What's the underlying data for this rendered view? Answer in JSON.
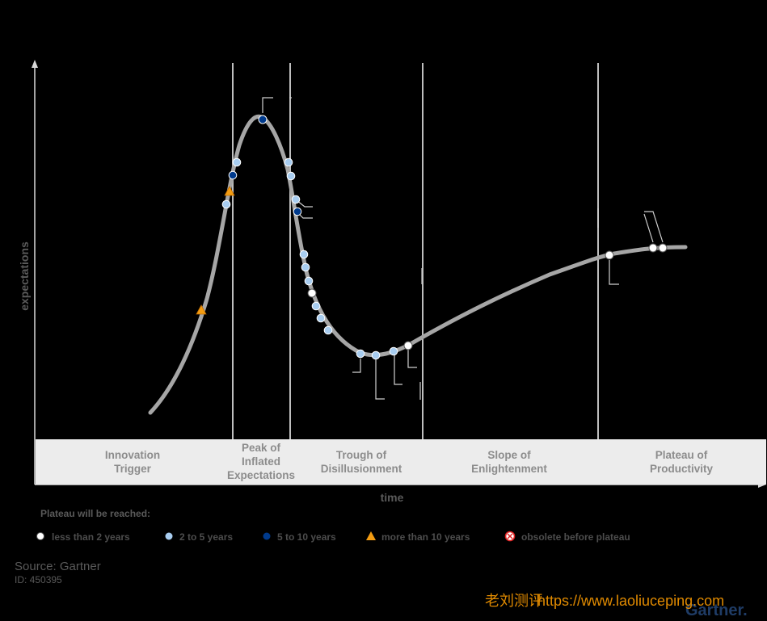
{
  "chart_data": {
    "type": "line",
    "xlabel": "time",
    "ylabel": "expectations",
    "phases": [
      {
        "name": "Innovation Trigger",
        "lines": [
          "Innovation",
          "Trigger"
        ]
      },
      {
        "name": "Peak of Inflated Expectations",
        "lines": [
          "Peak of",
          "Inflated",
          "Expectations"
        ]
      },
      {
        "name": "Trough of Disillusionment",
        "lines": [
          "Trough of",
          "Disillusionment"
        ]
      },
      {
        "name": "Slope of Enlightenment",
        "lines": [
          "Slope of",
          "Enlightenment"
        ]
      },
      {
        "name": "Plateau of Productivity",
        "lines": [
          "Plateau of",
          "Productivity"
        ]
      }
    ],
    "legend": {
      "title": "Plateau will be reached:",
      "items": [
        {
          "label": "less than 2 years",
          "color": "#ffffff",
          "shape": "circle"
        },
        {
          "label": "2 to 5 years",
          "color": "#a8cdf0",
          "shape": "circle"
        },
        {
          "label": "5 to 10 years",
          "color": "#003a8c",
          "shape": "circle"
        },
        {
          "label": "more than 10 years",
          "color": "#f39c12",
          "shape": "triangle"
        },
        {
          "label": "obsolete before plateau",
          "color": "#e02020",
          "shape": "circle-x"
        }
      ]
    },
    "curve_color": "#a6a6a6",
    "markers_note": "technology markers positioned along the hype cycle curve; labels not legible"
  },
  "footer": {
    "source": "Source: Gartner",
    "id": "ID: 450395",
    "brand": "Gartner."
  },
  "watermark": {
    "cn": "老刘测评",
    "url": "https://www.laoliuceping.com"
  }
}
